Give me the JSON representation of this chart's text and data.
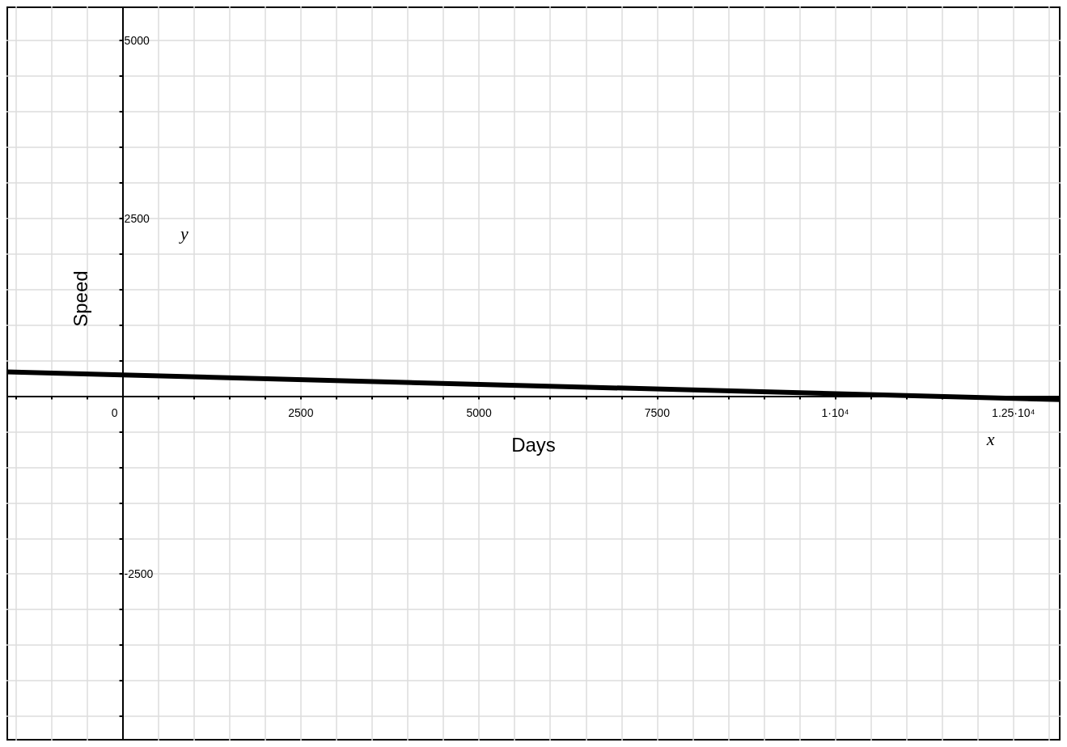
{
  "chart_data": {
    "type": "line",
    "xlabel": "Days",
    "ylabel": "Speed",
    "annotations": [
      "y",
      "x"
    ],
    "x": [
      -1630,
      13160
    ],
    "series": [
      {
        "color": "#000000",
        "values": [
          340,
          -50
        ]
      }
    ],
    "xlim": [
      -1630,
      13160
    ],
    "ylim": [
      -4840,
      5475
    ],
    "xticks": [
      {
        "value": -1500,
        "label": null
      },
      {
        "value": -1000,
        "label": null
      },
      {
        "value": -500,
        "label": null
      },
      0,
      {
        "value": 500,
        "label": null
      },
      {
        "value": 1000,
        "label": null
      },
      {
        "value": 1500,
        "label": null
      },
      {
        "value": 2000,
        "label": null
      },
      2500,
      {
        "value": 3000,
        "label": null
      },
      {
        "value": 3500,
        "label": null
      },
      {
        "value": 4000,
        "label": null
      },
      {
        "value": 4500,
        "label": null
      },
      5000,
      {
        "value": 5500,
        "label": null
      },
      {
        "value": 6000,
        "label": null
      },
      {
        "value": 6500,
        "label": null
      },
      {
        "value": 7000,
        "label": null
      },
      7500,
      {
        "value": 8000,
        "label": null
      },
      {
        "value": 8500,
        "label": null
      },
      {
        "value": 9000,
        "label": null
      },
      {
        "value": 9500,
        "label": null
      },
      {
        "value": 10000,
        "label": "1·10⁴"
      },
      {
        "value": 10500,
        "label": null
      },
      {
        "value": 11000,
        "label": null
      },
      {
        "value": 11500,
        "label": null
      },
      {
        "value": 12000,
        "label": null
      },
      {
        "value": 12500,
        "label": "1.25·10⁴"
      },
      {
        "value": 13000,
        "label": null
      }
    ],
    "yticks": [
      {
        "value": -4500,
        "label": null
      },
      {
        "value": -4000,
        "label": null
      },
      {
        "value": -3500,
        "label": null
      },
      {
        "value": -3000,
        "label": null
      },
      -2500,
      {
        "value": -2000,
        "label": null
      },
      {
        "value": -1500,
        "label": null
      },
      {
        "value": -1000,
        "label": null
      },
      {
        "value": -500,
        "label": null
      },
      {
        "value": 500,
        "label": null
      },
      {
        "value": 1000,
        "label": null
      },
      {
        "value": 1500,
        "label": null
      },
      {
        "value": 2000,
        "label": null
      },
      2500,
      {
        "value": 3000,
        "label": null
      },
      {
        "value": 3500,
        "label": null
      },
      {
        "value": 4000,
        "label": null
      },
      {
        "value": 4500,
        "label": null
      },
      5000
    ],
    "grid": true,
    "line_style": "solid"
  }
}
